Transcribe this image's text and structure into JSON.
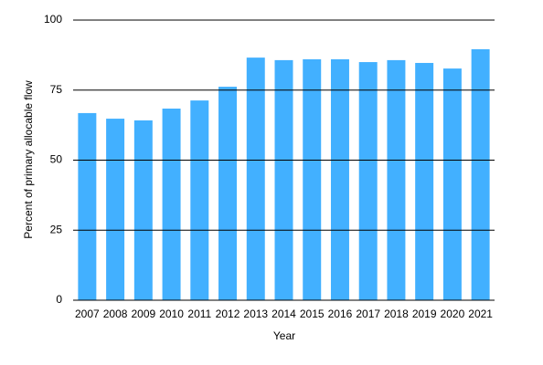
{
  "chart_data": {
    "type": "bar",
    "x_label": "Year",
    "y_label": "Percent of primary allocable flow",
    "categories": [
      "2007",
      "2008",
      "2009",
      "2010",
      "2011",
      "2012",
      "2013",
      "2014",
      "2015",
      "2016",
      "2017",
      "2018",
      "2019",
      "2020",
      "2021"
    ],
    "values": [
      66.8,
      64.8,
      64.2,
      68.4,
      71.3,
      76.2,
      86.6,
      85.7,
      86,
      86,
      85,
      85.7,
      84.7,
      82.7,
      89.6
    ],
    "color": "#42b0ff",
    "ylim": [
      0,
      100
    ],
    "yticks": [
      0,
      25,
      50,
      75,
      100
    ],
    "grid": true
  }
}
